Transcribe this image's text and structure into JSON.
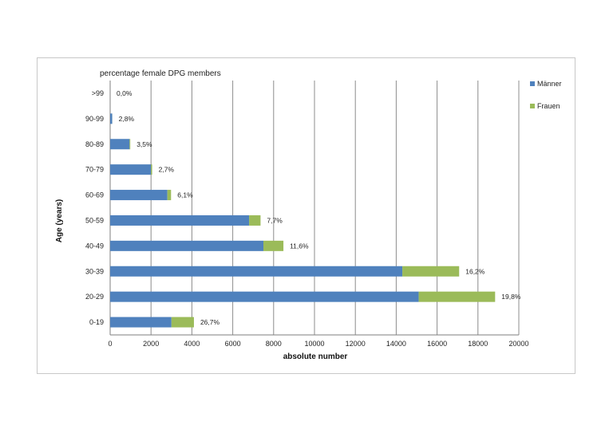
{
  "chart_data": {
    "type": "bar",
    "orientation": "horizontal",
    "stacked": true,
    "title": "percentage female DPG members",
    "xlabel": "absolute number",
    "ylabel": "Age (years)",
    "xlim": [
      0,
      20000
    ],
    "xticks": [
      0,
      2000,
      4000,
      6000,
      8000,
      10000,
      12000,
      14000,
      16000,
      18000,
      20000
    ],
    "grid": "vertical",
    "legend_position": "right",
    "categories": [
      ">99",
      "90-99",
      "80-89",
      "70-79",
      "60-69",
      "50-59",
      "40-49",
      "30-39",
      "20-29",
      "0-19"
    ],
    "series": [
      {
        "name": "Männer",
        "color": "#4F81BD",
        "values": [
          0,
          100,
          950,
          2000,
          2800,
          6800,
          7500,
          14300,
          15100,
          3000
        ]
      },
      {
        "name": "Frauen",
        "color": "#9BBB59",
        "values": [
          0,
          3,
          35,
          55,
          180,
          560,
          980,
          2780,
          3740,
          1100
        ]
      }
    ],
    "annotations": [
      "0,0%",
      "2,8%",
      "3,5%",
      "2,7%",
      "6,1%",
      "7,7%",
      "11,6%",
      "16,2%",
      "19,8%",
      "26,7%"
    ]
  }
}
